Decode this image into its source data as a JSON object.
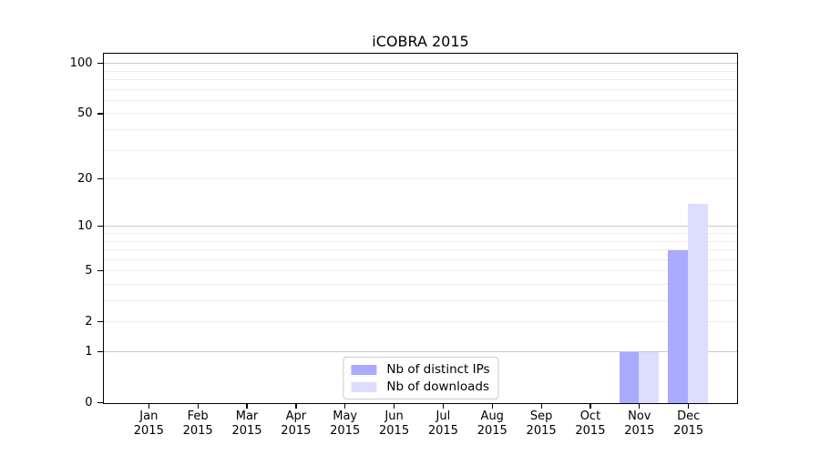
{
  "chart_data": {
    "type": "bar",
    "title": "iCOBRA 2015",
    "categories": [
      "Jan",
      "Feb",
      "Mar",
      "Apr",
      "May",
      "Jun",
      "Jul",
      "Aug",
      "Sep",
      "Oct",
      "Nov",
      "Dec"
    ],
    "x_year_label": "2015",
    "series": [
      {
        "name": "Nb of distinct IPs",
        "color": "#aaaaff",
        "values": [
          0,
          0,
          0,
          0,
          0,
          0,
          0,
          0,
          0,
          0,
          1,
          7
        ]
      },
      {
        "name": "Nb of downloads",
        "color": "#ddddff",
        "values": [
          0,
          0,
          0,
          0,
          0,
          0,
          0,
          0,
          0,
          0,
          1,
          14
        ]
      }
    ],
    "y_scale": "log1p",
    "y_ticks": [
      0,
      1,
      2,
      5,
      10,
      20,
      50,
      100
    ],
    "y_major_gridlines": [
      1,
      10,
      100
    ],
    "y_minor_gridlines": [
      2,
      3,
      4,
      5,
      6,
      7,
      8,
      9,
      20,
      30,
      40,
      50,
      60,
      70,
      80,
      90
    ],
    "ylim": [
      0,
      115
    ],
    "grid": "horizontal",
    "legend_position": "bottom-center",
    "colors": {
      "major_grid": "#c9c9c9",
      "minor_grid": "#ededed",
      "axis": "#000000",
      "background": "#ffffff",
      "text": "#000000"
    }
  }
}
